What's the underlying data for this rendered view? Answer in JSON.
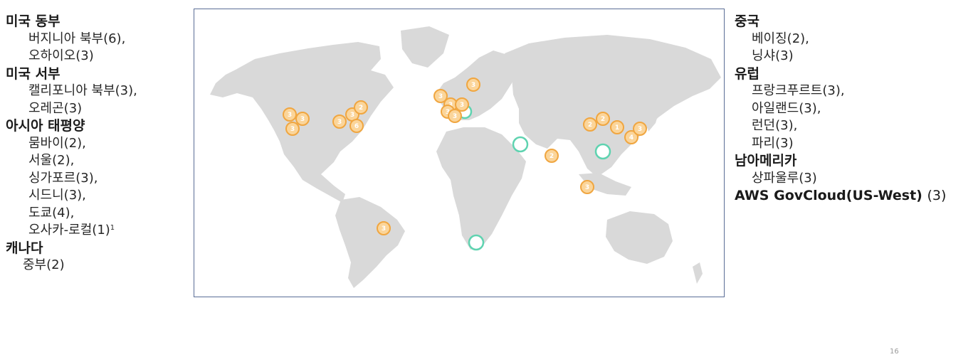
{
  "left_regions": [
    {
      "name": "미국 동부",
      "locations": [
        "버지니아 북부(6),",
        "오하이오(3)"
      ]
    },
    {
      "name": "미국 서부",
      "locations": [
        "캘리포니아 북부(3),",
        "오레곤(3)"
      ]
    },
    {
      "name": "아시아 태평양",
      "locations": [
        "뭄바이(2),",
        "서울(2),",
        "싱가포르(3),",
        "시드니(3),",
        "도쿄(4),",
        "오사카-로컬(1)"
      ],
      "footnote_mark": "1"
    },
    {
      "name": "캐나다",
      "locations": [
        "중부(2)"
      ]
    }
  ],
  "right_regions": [
    {
      "name": "중국",
      "locations": [
        "베이징(2),",
        "닝샤(3)"
      ]
    },
    {
      "name": "유럽",
      "locations": [
        "프랑크푸르트(3),",
        "아일랜드(3),",
        "런던(3),",
        "파리(3)"
      ]
    },
    {
      "name": "남아메리카",
      "locations": [
        "상파울루(3)"
      ]
    }
  ],
  "govcloud": {
    "name": "AWS GovCloud(US-West)",
    "count": "(3)"
  },
  "map": {
    "az_badges": [
      "3",
      "3",
      "3",
      "3",
      "3",
      "2",
      "6",
      "3",
      "3",
      "3",
      "3",
      "3",
      "3",
      "2",
      "3",
      "2",
      "2",
      "1",
      "4",
      "3",
      "3"
    ],
    "upcoming_region_markers": 5
  },
  "colors": {
    "land": "#d9d9d9",
    "badge_fill": "#fbd59a",
    "badge_stroke": "#f0a640",
    "upcoming_ring": "#5fd3b0",
    "frame": "#5a6d96"
  },
  "page_number": "16"
}
